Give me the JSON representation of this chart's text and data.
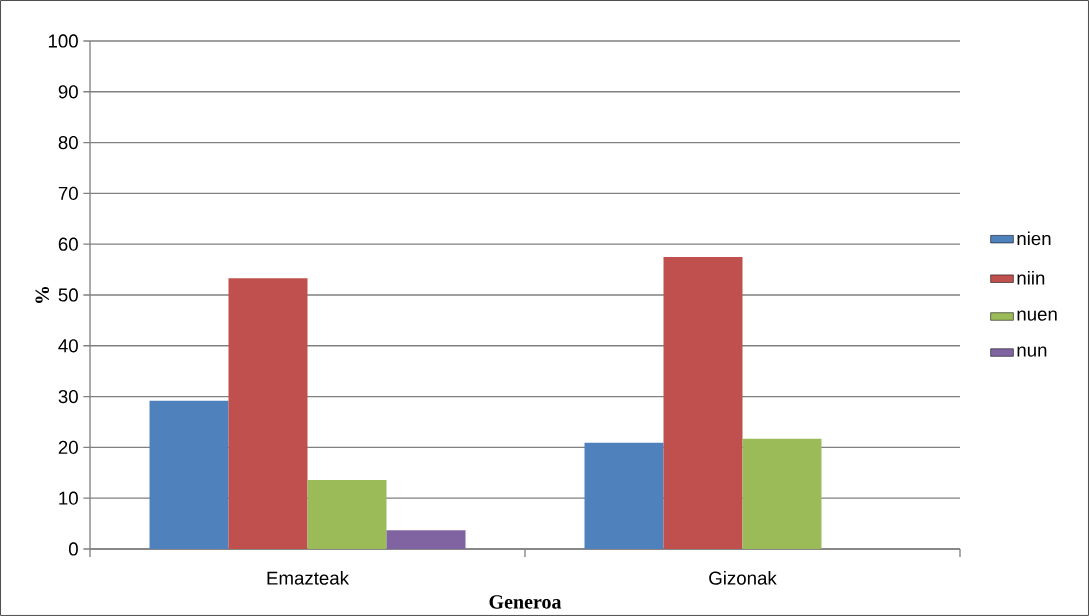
{
  "chart_data": {
    "type": "bar",
    "xlabel": "Generoa",
    "ylabel": "%",
    "categories": [
      "Emazteak",
      "Gizonak"
    ],
    "series": [
      {
        "name": "nien",
        "color": "#4f81bd",
        "values": [
          29.2,
          20.9
        ]
      },
      {
        "name": "niin",
        "color": "#c0504d",
        "values": [
          53.3,
          57.5
        ]
      },
      {
        "name": "nuen",
        "color": "#9bbb59",
        "values": [
          13.6,
          21.7
        ]
      },
      {
        "name": "nun",
        "color": "#8064a2",
        "values": [
          3.7,
          null
        ]
      }
    ],
    "ylim": [
      0,
      100
    ],
    "yticks": [
      0,
      10,
      20,
      30,
      40,
      50,
      60,
      70,
      80,
      90,
      100
    ],
    "grid": "y",
    "legend": "right"
  }
}
